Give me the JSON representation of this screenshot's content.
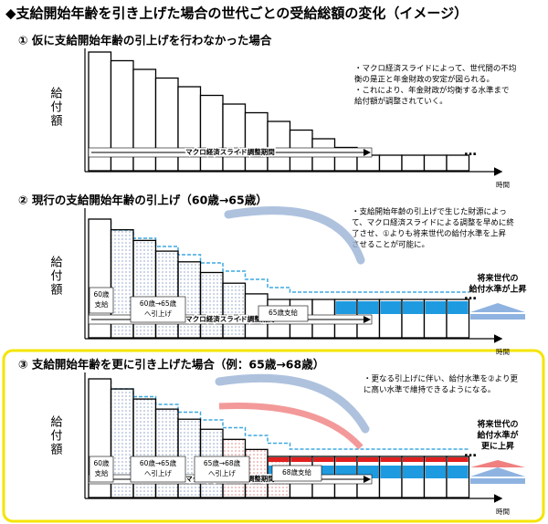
{
  "title": "◆支給開始年齢を引き上げた場合の世代ごとの受給総額の変化（イメージ）",
  "panels": [
    {
      "heading": "①  仮に支給開始年齢の引上げを行わなかった場合",
      "y_axis_label": "給付額",
      "period_label": "マクロ経済スライド調整期間",
      "x_axis_label": "時間",
      "ellipsis": "…",
      "notes": [
        "・マクロ経済スライドによって、世代間の不均",
        "衡の是正と年金財政の安定が図られる。",
        "・これにより、年金財政が均衡する水準まで",
        "給付額が調整されていく。"
      ]
    },
    {
      "heading": "②  現行の支給開始年齢の引上げ（60歳→65歳）",
      "y_axis_label": "給付額",
      "period_label": "マクロ経済スライド調整期間",
      "x_axis_label": "時間",
      "ellipsis": "…",
      "notes": [
        "・支給開始年齢の引上げで生じた財源によっ",
        "て、マクロ経済スライドによる調整を早めに終",
        "了させ、①よりも将来世代の給付水準を上昇",
        "させることが可能に。"
      ],
      "labels": [
        [
          "60歳",
          "支給"
        ],
        [
          "60歳→65歳",
          "へ引上げ"
        ],
        [
          "65歳支給"
        ]
      ],
      "future_label": [
        "将来世代の",
        "給付水準が上昇"
      ]
    },
    {
      "heading": "③  支給開始年齢を更に引き上げた場合（例：65歳→68歳）",
      "y_axis_label": "給付額",
      "period_label": "マクロ経済スライド調整期間",
      "x_axis_label": "時間",
      "ellipsis": "…",
      "notes": [
        "・更なる引上げに伴い、給付水準を②より更",
        "に高い水準で維持できるようになる。"
      ],
      "labels": [
        [
          "60歳",
          "支給"
        ],
        [
          "60歳→65歳",
          "へ引上げ"
        ],
        [
          "65歳→68歳",
          "へ引上げ"
        ],
        [
          "68歳支給"
        ]
      ],
      "future_label": [
        "将来世代の",
        "給付水準が",
        "更に上昇"
      ]
    }
  ]
}
